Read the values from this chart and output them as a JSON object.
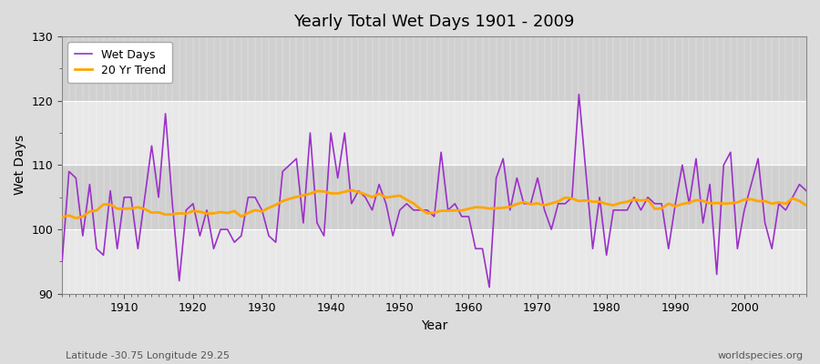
{
  "title": "Yearly Total Wet Days 1901 - 2009",
  "xlabel": "Year",
  "ylabel": "Wet Days",
  "lat_lon_label": "Latitude -30.75 Longitude 29.25",
  "source_label": "worldspecies.org",
  "ylim": [
    90,
    130
  ],
  "yticks": [
    90,
    100,
    110,
    120,
    130
  ],
  "start_year": 1901,
  "end_year": 2009,
  "wet_days_color": "#9B30C8",
  "trend_color": "#FFA500",
  "background_color": "#DCDCDC",
  "band_color_light": "#E8E8E8",
  "band_color_dark": "#D0D0D0",
  "wet_days": [
    95,
    109,
    108,
    99,
    107,
    97,
    96,
    106,
    97,
    105,
    105,
    97,
    105,
    113,
    105,
    118,
    104,
    92,
    103,
    104,
    99,
    103,
    97,
    100,
    100,
    98,
    99,
    105,
    105,
    103,
    99,
    98,
    109,
    110,
    111,
    101,
    115,
    101,
    99,
    115,
    108,
    115,
    104,
    106,
    105,
    103,
    107,
    104,
    99,
    103,
    104,
    103,
    103,
    103,
    102,
    112,
    103,
    104,
    102,
    102,
    97,
    97,
    91,
    108,
    111,
    103,
    108,
    104,
    104,
    108,
    103,
    100,
    104,
    104,
    105,
    121,
    109,
    97,
    105,
    96,
    103,
    103,
    103,
    105,
    103,
    105,
    104,
    104,
    97,
    104,
    110,
    104,
    111,
    101,
    107,
    93,
    110,
    112,
    97,
    103,
    107,
    111,
    101,
    97,
    104,
    103,
    105,
    107,
    106
  ]
}
